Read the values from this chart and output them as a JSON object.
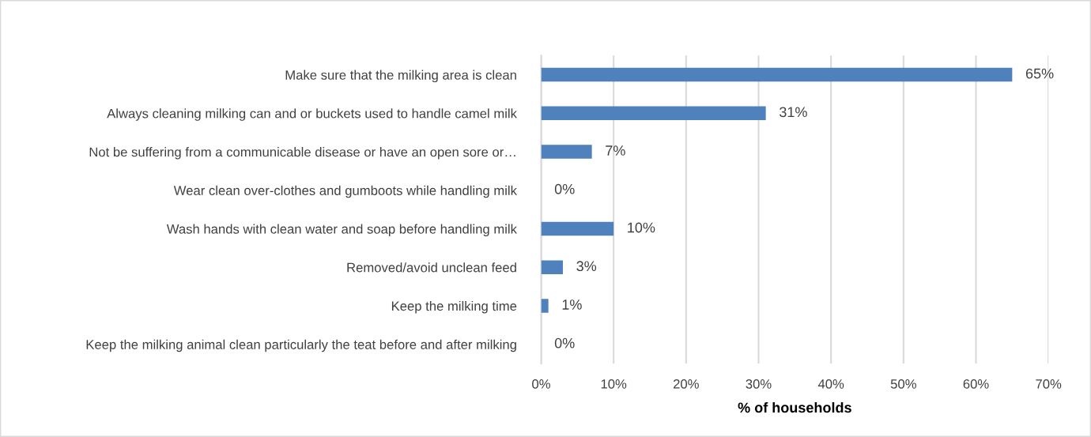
{
  "chart_data": {
    "type": "bar",
    "orientation": "horizontal",
    "xlabel": "% of households",
    "categories": [
      "Make sure that the milking area is clean",
      "Always cleaning milking can and or buckets used to handle camel milk",
      "Not be suffering from a communicable disease or have an open sore or…",
      "Wear clean over-clothes and gumboots while handling milk",
      "Wash hands with clean water and soap before handling milk",
      "Removed/avoid unclean feed",
      "Keep the milking time",
      "Keep the milking animal clean particularly the teat before and after milking"
    ],
    "values": [
      65,
      31,
      7,
      0,
      10,
      3,
      1,
      0
    ],
    "value_labels": [
      "65%",
      "31%",
      "7%",
      "0%",
      "10%",
      "3%",
      "1%",
      "0%"
    ],
    "color": "#4f81bd",
    "xlim": [
      0,
      70
    ],
    "xticks": [
      {
        "value": 0,
        "label": "0%"
      },
      {
        "value": 10,
        "label": "10%"
      },
      {
        "value": 20,
        "label": "20%"
      },
      {
        "value": 30,
        "label": "30%"
      },
      {
        "value": 40,
        "label": "40%"
      },
      {
        "value": 50,
        "label": "50%"
      },
      {
        "value": 60,
        "label": "60%"
      },
      {
        "value": 70,
        "label": "70%"
      }
    ],
    "grid": "x",
    "legend": false
  }
}
